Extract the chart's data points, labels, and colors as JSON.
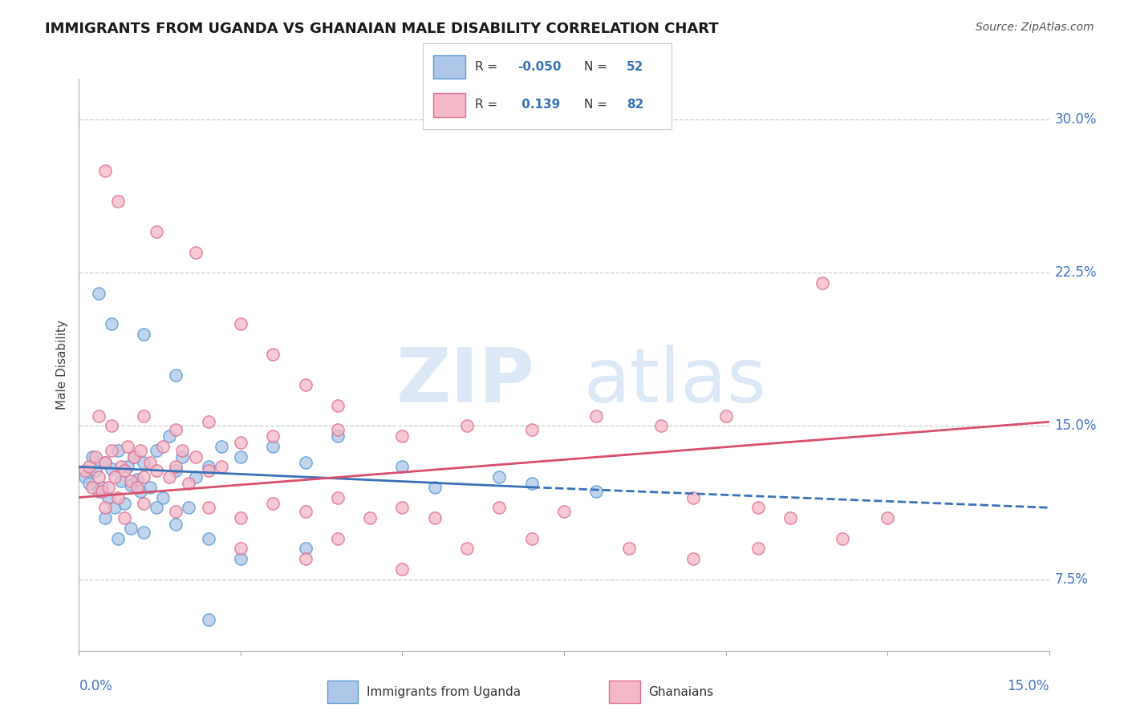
{
  "title": "IMMIGRANTS FROM UGANDA VS GHANAIAN MALE DISABILITY CORRELATION CHART",
  "source": "Source: ZipAtlas.com",
  "ylabel": "Male Disability",
  "xlim": [
    0.0,
    15.0
  ],
  "ylim": [
    4.0,
    32.0
  ],
  "yticks": [
    7.5,
    15.0,
    22.5,
    30.0
  ],
  "xticks": [
    0.0,
    2.5,
    5.0,
    7.5,
    10.0,
    12.5,
    15.0
  ],
  "color_blue": "#aec6e8",
  "color_blue_edge": "#5b9bd5",
  "color_pink": "#f4b8c8",
  "color_pink_edge": "#e07090",
  "color_trendline_blue": "#3a72b8",
  "color_trendline_pink": "#d94f6e",
  "blue_scatter": [
    [
      0.1,
      12.5
    ],
    [
      0.15,
      12.2
    ],
    [
      0.2,
      13.5
    ],
    [
      0.25,
      12.8
    ],
    [
      0.3,
      11.8
    ],
    [
      0.35,
      12.0
    ],
    [
      0.4,
      13.2
    ],
    [
      0.45,
      11.5
    ],
    [
      0.5,
      12.9
    ],
    [
      0.55,
      11.0
    ],
    [
      0.6,
      13.8
    ],
    [
      0.65,
      12.3
    ],
    [
      0.7,
      11.2
    ],
    [
      0.75,
      13.0
    ],
    [
      0.8,
      12.1
    ],
    [
      0.85,
      13.5
    ],
    [
      0.9,
      12.4
    ],
    [
      0.95,
      11.8
    ],
    [
      1.0,
      13.2
    ],
    [
      1.1,
      12.0
    ],
    [
      1.2,
      13.8
    ],
    [
      1.3,
      11.5
    ],
    [
      1.4,
      14.5
    ],
    [
      1.5,
      12.8
    ],
    [
      1.6,
      13.5
    ],
    [
      1.7,
      11.0
    ],
    [
      1.8,
      12.5
    ],
    [
      2.0,
      13.0
    ],
    [
      2.2,
      14.0
    ],
    [
      2.5,
      13.5
    ],
    [
      0.3,
      21.5
    ],
    [
      0.5,
      20.0
    ],
    [
      1.0,
      19.5
    ],
    [
      1.5,
      17.5
    ],
    [
      3.0,
      14.0
    ],
    [
      3.5,
      13.2
    ],
    [
      4.0,
      14.5
    ],
    [
      5.0,
      13.0
    ],
    [
      5.5,
      12.0
    ],
    [
      6.5,
      12.5
    ],
    [
      7.0,
      12.2
    ],
    [
      8.0,
      11.8
    ],
    [
      0.4,
      10.5
    ],
    [
      0.6,
      9.5
    ],
    [
      0.8,
      10.0
    ],
    [
      1.0,
      9.8
    ],
    [
      1.2,
      11.0
    ],
    [
      1.5,
      10.2
    ],
    [
      2.0,
      9.5
    ],
    [
      2.5,
      8.5
    ],
    [
      3.5,
      9.0
    ],
    [
      2.0,
      5.5
    ]
  ],
  "pink_scatter": [
    [
      0.1,
      12.8
    ],
    [
      0.15,
      13.0
    ],
    [
      0.2,
      12.0
    ],
    [
      0.25,
      13.5
    ],
    [
      0.3,
      12.5
    ],
    [
      0.35,
      11.8
    ],
    [
      0.4,
      13.2
    ],
    [
      0.45,
      12.0
    ],
    [
      0.5,
      13.8
    ],
    [
      0.55,
      12.5
    ],
    [
      0.6,
      11.5
    ],
    [
      0.65,
      13.0
    ],
    [
      0.7,
      12.8
    ],
    [
      0.75,
      14.0
    ],
    [
      0.8,
      12.3
    ],
    [
      0.85,
      13.5
    ],
    [
      0.9,
      12.0
    ],
    [
      0.95,
      13.8
    ],
    [
      1.0,
      12.5
    ],
    [
      1.1,
      13.2
    ],
    [
      1.2,
      12.8
    ],
    [
      1.3,
      14.0
    ],
    [
      1.4,
      12.5
    ],
    [
      1.5,
      13.0
    ],
    [
      1.6,
      13.8
    ],
    [
      1.7,
      12.2
    ],
    [
      1.8,
      13.5
    ],
    [
      2.0,
      12.8
    ],
    [
      2.2,
      13.0
    ],
    [
      2.5,
      14.2
    ],
    [
      0.4,
      27.5
    ],
    [
      0.6,
      26.0
    ],
    [
      1.2,
      24.5
    ],
    [
      1.8,
      23.5
    ],
    [
      2.5,
      20.0
    ],
    [
      3.0,
      18.5
    ],
    [
      3.5,
      17.0
    ],
    [
      4.0,
      16.0
    ],
    [
      0.3,
      15.5
    ],
    [
      0.5,
      15.0
    ],
    [
      1.0,
      15.5
    ],
    [
      1.5,
      14.8
    ],
    [
      2.0,
      15.2
    ],
    [
      3.0,
      14.5
    ],
    [
      4.0,
      14.8
    ],
    [
      5.0,
      14.5
    ],
    [
      6.0,
      15.0
    ],
    [
      7.0,
      14.8
    ],
    [
      8.0,
      15.5
    ],
    [
      9.0,
      15.0
    ],
    [
      10.0,
      15.5
    ],
    [
      0.4,
      11.0
    ],
    [
      0.7,
      10.5
    ],
    [
      1.0,
      11.2
    ],
    [
      1.5,
      10.8
    ],
    [
      2.0,
      11.0
    ],
    [
      2.5,
      10.5
    ],
    [
      3.0,
      11.2
    ],
    [
      3.5,
      10.8
    ],
    [
      4.0,
      11.5
    ],
    [
      4.5,
      10.5
    ],
    [
      5.0,
      11.0
    ],
    [
      5.5,
      10.5
    ],
    [
      6.5,
      11.0
    ],
    [
      7.5,
      10.8
    ],
    [
      9.5,
      11.5
    ],
    [
      10.5,
      11.0
    ],
    [
      11.0,
      10.5
    ],
    [
      2.5,
      9.0
    ],
    [
      3.5,
      8.5
    ],
    [
      4.0,
      9.5
    ],
    [
      5.0,
      8.0
    ],
    [
      6.0,
      9.0
    ],
    [
      7.0,
      9.5
    ],
    [
      8.5,
      9.0
    ],
    [
      9.5,
      8.5
    ],
    [
      10.5,
      9.0
    ],
    [
      11.5,
      22.0
    ],
    [
      11.8,
      9.5
    ],
    [
      12.5,
      10.5
    ]
  ],
  "trendline_blue_solid": {
    "x_start": 0.0,
    "y_start": 13.0,
    "x_end": 7.0,
    "y_end": 12.0
  },
  "trendline_blue_dash": {
    "x_start": 7.0,
    "y_start": 12.0,
    "x_end": 15.0,
    "y_end": 11.0
  },
  "trendline_pink": {
    "x_start": 0.0,
    "y_start": 11.5,
    "x_end": 15.0,
    "y_end": 15.2
  }
}
